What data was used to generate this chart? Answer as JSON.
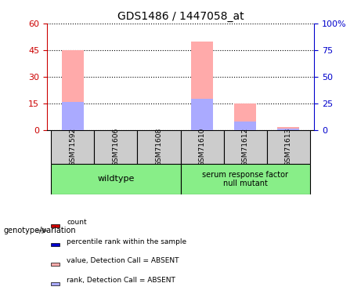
{
  "title": "GDS1486 / 1447058_at",
  "samples": [
    "GSM71592",
    "GSM71606",
    "GSM71608",
    "GSM71610",
    "GSM71612",
    "GSM71613"
  ],
  "pink_values": [
    45,
    0,
    0,
    50,
    15,
    2
  ],
  "blue_values": [
    16,
    0,
    0,
    18,
    5,
    1
  ],
  "ylim_left": [
    0,
    60
  ],
  "ylim_right": [
    0,
    100
  ],
  "yticks_left": [
    0,
    15,
    30,
    45,
    60
  ],
  "yticks_right": [
    0,
    25,
    50,
    75,
    100
  ],
  "yticklabels_left": [
    "0",
    "15",
    "30",
    "45",
    "60"
  ],
  "yticklabels_right": [
    "0",
    "25",
    "50",
    "75",
    "100%"
  ],
  "left_tick_color": "#cc0000",
  "right_tick_color": "#0000cc",
  "pink_color": "#ffaaaa",
  "blue_color": "#aaaaff",
  "red_color": "#cc0000",
  "blue_dark_color": "#0000cc",
  "wildtype_label": "wildtype",
  "mutant_label": "serum response factor\nnull mutant",
  "genotype_label": "genotype/variation",
  "group_color": "#88ee88",
  "sample_box_color": "#cccccc",
  "legend_items": [
    {
      "label": "count",
      "color": "#cc0000"
    },
    {
      "label": "percentile rank within the sample",
      "color": "#0000cc"
    },
    {
      "label": "value, Detection Call = ABSENT",
      "color": "#ffaaaa"
    },
    {
      "label": "rank, Detection Call = ABSENT",
      "color": "#aaaaff"
    }
  ],
  "bar_width": 0.5,
  "grid_color": "#000000"
}
